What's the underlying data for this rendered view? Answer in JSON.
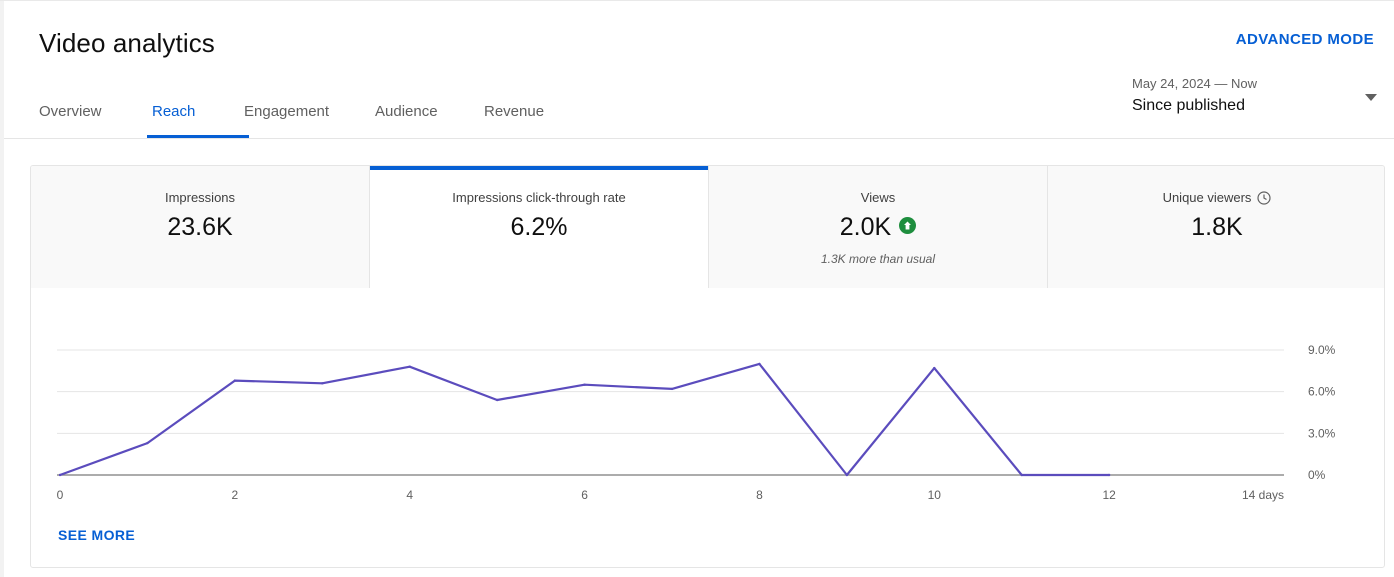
{
  "header": {
    "title": "Video analytics",
    "advanced_mode": "ADVANCED MODE"
  },
  "tabs": [
    {
      "label": "Overview",
      "active": false
    },
    {
      "label": "Reach",
      "active": true
    },
    {
      "label": "Engagement",
      "active": false
    },
    {
      "label": "Audience",
      "active": false
    },
    {
      "label": "Revenue",
      "active": false
    }
  ],
  "date_picker": {
    "range": "May 24, 2024 — Now",
    "label": "Since published",
    "icon": "caret-down-icon"
  },
  "metrics": [
    {
      "label": "Impressions",
      "value": "23.6K",
      "note": "",
      "active": false
    },
    {
      "label": "Impressions click-through rate",
      "value": "6.2%",
      "note": "",
      "active": true
    },
    {
      "label": "Views",
      "value": "2.0K",
      "note": "1.3K more than usual",
      "active": false,
      "indicator": "arrow-up-icon"
    },
    {
      "label": "Unique viewers",
      "value": "1.8K",
      "note": "",
      "active": false,
      "indicator": "clock-icon"
    }
  ],
  "see_more": "SEE MORE",
  "colors": {
    "accent": "#065fd4",
    "line": "#5b4cbd",
    "positive": "#1e8e3e"
  },
  "chart_data": {
    "type": "line",
    "x": [
      0,
      1,
      2,
      3,
      4,
      5,
      6,
      7,
      8,
      9,
      10,
      11,
      12
    ],
    "series": [
      {
        "values": [
          0.0,
          2.3,
          6.8,
          6.6,
          7.8,
          5.4,
          6.5,
          6.2,
          8.0,
          0.0,
          7.7,
          0.0,
          0.0
        ]
      }
    ],
    "x_ticks": [
      "0",
      "2",
      "4",
      "6",
      "8",
      "10",
      "12",
      "14 days"
    ],
    "x_tick_values": [
      0,
      2,
      4,
      6,
      8,
      10,
      12,
      14
    ],
    "y_ticks": [
      "0%",
      "3.0%",
      "6.0%",
      "9.0%"
    ],
    "y_tick_values": [
      0,
      3,
      6,
      9
    ],
    "xlim": [
      0,
      14
    ],
    "ylim": [
      0,
      9
    ],
    "y_axis_position": "right",
    "grid": true
  }
}
